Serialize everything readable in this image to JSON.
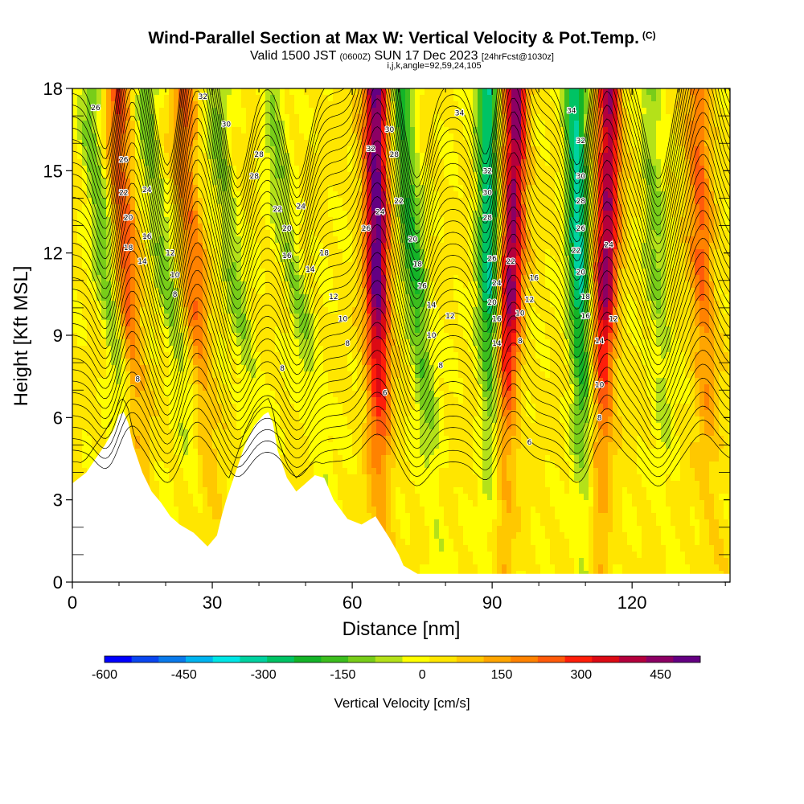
{
  "title": "Wind-Parallel Section at Max W: Vertical Velocity & Pot.Temp.",
  "copyright": "(C)",
  "valid_main": "Valid 1500 JST",
  "valid_utc": "(0600Z)",
  "valid_date": "SUN 17 Dec 2023",
  "forecast": "[24hrFcst@1030z]",
  "indices": "i,j,k,angle=92,59,24,105",
  "colorbar_label": "Vertical Velocity [cm/s]",
  "colorbar_ticks": [
    "-600",
    "-450",
    "-300",
    "-150",
    "0",
    "150",
    "300",
    "450"
  ],
  "colorbar_colors": [
    "#0000ff",
    "#0a46f0",
    "#0a7aeb",
    "#00b4f0",
    "#00e6e6",
    "#00d2a0",
    "#00c364",
    "#14b428",
    "#3cbe1e",
    "#78cd19",
    "#b4e119",
    "#ffff00",
    "#ffe600",
    "#ffc800",
    "#ffa500",
    "#ff8200",
    "#ff5a0a",
    "#ff1e0a",
    "#dc0a14",
    "#b4003c",
    "#8c0064",
    "#640082"
  ],
  "chart_data": {
    "type": "heatmap",
    "xlabel": "Distance [nm]",
    "ylabel": "Height [Kft MSL]",
    "xlim": [
      0,
      141
    ],
    "ylim": [
      0,
      18
    ],
    "x_ticks": [
      "0",
      "30",
      "60",
      "90",
      "120"
    ],
    "y_ticks": [
      "0",
      "3",
      "6",
      "9",
      "12",
      "15",
      "18"
    ],
    "field": "Vertical Velocity [cm/s]",
    "zlim": [
      -600,
      525
    ],
    "background_value": 25,
    "updraft_bands": [
      {
        "x_base": 15,
        "x_top": 10,
        "strength": 230
      },
      {
        "x_base": 30,
        "x_top": 24,
        "strength": 190
      },
      {
        "x_base": 66,
        "x_top": 65,
        "strength": 470
      },
      {
        "x_base": 92,
        "x_top": 95,
        "strength": 420
      },
      {
        "x_base": 113,
        "x_top": 115,
        "strength": 400
      },
      {
        "x_base": 137,
        "x_top": 134,
        "strength": 200
      }
    ],
    "downdraft_bands": [
      {
        "x_base": 14,
        "x_top": 4,
        "strength": -150
      },
      {
        "x_base": 28,
        "x_top": 16,
        "strength": -130
      },
      {
        "x_base": 42,
        "x_top": 31,
        "strength": -120
      },
      {
        "x_base": 56,
        "x_top": 43,
        "strength": -120
      },
      {
        "x_base": 78,
        "x_top": 71,
        "strength": -230
      },
      {
        "x_base": 90,
        "x_top": 89,
        "strength": -320
      },
      {
        "x_base": 110,
        "x_top": 108,
        "strength": -340
      },
      {
        "x_base": 128,
        "x_top": 124,
        "strength": -120
      }
    ],
    "terrain": {
      "x": [
        0,
        3,
        5,
        7,
        9,
        10,
        11,
        12,
        13,
        15,
        17,
        19,
        21,
        23,
        26,
        29,
        31,
        32,
        33,
        35,
        37,
        39,
        41,
        42,
        43,
        44,
        46,
        48,
        50,
        52,
        54,
        56,
        59,
        62,
        65,
        68,
        70,
        71,
        73,
        74,
        141
      ],
      "height": [
        3.6,
        4.0,
        4.5,
        5.0,
        5.6,
        6.1,
        6.2,
        5.8,
        5.0,
        4.0,
        3.3,
        2.9,
        2.4,
        2.1,
        1.8,
        1.3,
        1.7,
        2.4,
        3.0,
        4.0,
        5.0,
        5.7,
        6.1,
        6.2,
        5.8,
        4.8,
        3.8,
        3.3,
        3.6,
        3.9,
        3.8,
        3.0,
        2.3,
        2.1,
        2.4,
        1.6,
        1.0,
        0.6,
        0.4,
        0.3,
        0.3
      ]
    },
    "contour_field": "Potential Temperature",
    "contour_labels": [
      {
        "x": 5,
        "y": 17.3,
        "text": "26"
      },
      {
        "x": 28,
        "y": 17.7,
        "text": "32"
      },
      {
        "x": 33,
        "y": 16.7,
        "text": "30"
      },
      {
        "x": 40,
        "y": 15.6,
        "text": "28"
      },
      {
        "x": 39,
        "y": 14.8,
        "text": "28"
      },
      {
        "x": 11,
        "y": 15.4,
        "text": "26"
      },
      {
        "x": 11,
        "y": 14.2,
        "text": "22"
      },
      {
        "x": 16,
        "y": 14.3,
        "text": "24"
      },
      {
        "x": 12,
        "y": 13.3,
        "text": "20"
      },
      {
        "x": 44,
        "y": 13.6,
        "text": "22"
      },
      {
        "x": 49,
        "y": 13.7,
        "text": "24"
      },
      {
        "x": 46,
        "y": 12.9,
        "text": "20"
      },
      {
        "x": 12,
        "y": 12.2,
        "text": "18"
      },
      {
        "x": 16,
        "y": 12.6,
        "text": "16"
      },
      {
        "x": 15,
        "y": 11.7,
        "text": "14"
      },
      {
        "x": 21,
        "y": 12.0,
        "text": "12"
      },
      {
        "x": 22,
        "y": 11.2,
        "text": "10"
      },
      {
        "x": 22,
        "y": 10.5,
        "text": "8"
      },
      {
        "x": 46,
        "y": 11.9,
        "text": "16"
      },
      {
        "x": 51,
        "y": 11.4,
        "text": "14"
      },
      {
        "x": 54,
        "y": 12.0,
        "text": "18"
      },
      {
        "x": 56,
        "y": 10.4,
        "text": "12"
      },
      {
        "x": 58,
        "y": 9.6,
        "text": "10"
      },
      {
        "x": 59,
        "y": 8.7,
        "text": "8"
      },
      {
        "x": 14,
        "y": 7.4,
        "text": "8"
      },
      {
        "x": 45,
        "y": 7.8,
        "text": "8"
      },
      {
        "x": 63,
        "y": 12.9,
        "text": "26"
      },
      {
        "x": 64,
        "y": 15.8,
        "text": "32"
      },
      {
        "x": 68,
        "y": 16.5,
        "text": "30"
      },
      {
        "x": 69,
        "y": 15.6,
        "text": "28"
      },
      {
        "x": 66,
        "y": 13.5,
        "text": "24"
      },
      {
        "x": 70,
        "y": 13.9,
        "text": "22"
      },
      {
        "x": 73,
        "y": 12.5,
        "text": "20"
      },
      {
        "x": 74,
        "y": 11.6,
        "text": "18"
      },
      {
        "x": 75,
        "y": 10.8,
        "text": "16"
      },
      {
        "x": 77,
        "y": 10.1,
        "text": "14"
      },
      {
        "x": 81,
        "y": 9.7,
        "text": "12"
      },
      {
        "x": 77,
        "y": 9.0,
        "text": "10"
      },
      {
        "x": 79,
        "y": 7.9,
        "text": "8"
      },
      {
        "x": 67,
        "y": 6.9,
        "text": "6"
      },
      {
        "x": 83,
        "y": 17.1,
        "text": "34"
      },
      {
        "x": 89,
        "y": 15.0,
        "text": "32"
      },
      {
        "x": 89,
        "y": 14.2,
        "text": "30"
      },
      {
        "x": 89,
        "y": 13.3,
        "text": "28"
      },
      {
        "x": 90,
        "y": 11.8,
        "text": "26"
      },
      {
        "x": 94,
        "y": 11.7,
        "text": "22"
      },
      {
        "x": 91,
        "y": 10.9,
        "text": "24"
      },
      {
        "x": 90,
        "y": 10.2,
        "text": "20"
      },
      {
        "x": 91,
        "y": 9.6,
        "text": "16"
      },
      {
        "x": 91,
        "y": 8.7,
        "text": "14"
      },
      {
        "x": 96,
        "y": 9.8,
        "text": "10"
      },
      {
        "x": 98,
        "y": 10.3,
        "text": "12"
      },
      {
        "x": 99,
        "y": 11.1,
        "text": "16"
      },
      {
        "x": 96,
        "y": 8.8,
        "text": "8"
      },
      {
        "x": 98,
        "y": 5.1,
        "text": "6"
      },
      {
        "x": 107,
        "y": 17.2,
        "text": "34"
      },
      {
        "x": 109,
        "y": 16.1,
        "text": "32"
      },
      {
        "x": 109,
        "y": 14.8,
        "text": "30"
      },
      {
        "x": 109,
        "y": 13.9,
        "text": "28"
      },
      {
        "x": 109,
        "y": 12.9,
        "text": "26"
      },
      {
        "x": 108,
        "y": 12.1,
        "text": "22"
      },
      {
        "x": 109,
        "y": 11.3,
        "text": "20"
      },
      {
        "x": 110,
        "y": 10.4,
        "text": "18"
      },
      {
        "x": 110,
        "y": 9.7,
        "text": "16"
      },
      {
        "x": 115,
        "y": 12.3,
        "text": "24"
      },
      {
        "x": 116,
        "y": 9.6,
        "text": "12"
      },
      {
        "x": 113,
        "y": 8.8,
        "text": "14"
      },
      {
        "x": 113,
        "y": 7.2,
        "text": "10"
      },
      {
        "x": 113,
        "y": 6.0,
        "text": "8"
      }
    ]
  }
}
